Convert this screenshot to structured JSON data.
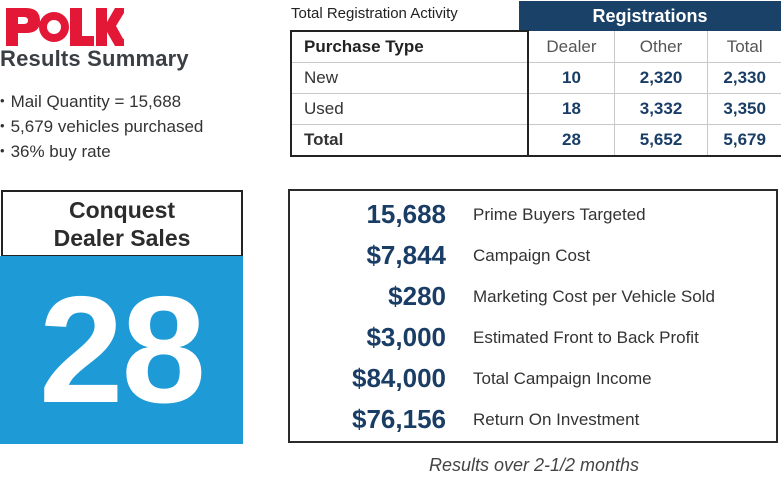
{
  "brand": {
    "logo_text": "POLK",
    "logo_color": "#e31837"
  },
  "summary": {
    "title": "Results Summary",
    "bullets": [
      "Mail Quantity = 15,688",
      "5,679 vehicles purchased",
      "36% buy rate"
    ]
  },
  "activity": {
    "caption": "Total Registration Activity",
    "group_header": "Registrations",
    "columns": [
      "Purchase Type",
      "Dealer",
      "Other",
      "Total"
    ],
    "rows": [
      {
        "type": "New",
        "dealer": "10",
        "other": "2,320",
        "total": "2,330"
      },
      {
        "type": "Used",
        "dealer": "18",
        "other": "3,332",
        "total": "3,350"
      },
      {
        "type": "Total",
        "dealer": "28",
        "other": "5,652",
        "total": "5,679"
      }
    ]
  },
  "conquest": {
    "line1": "Conquest",
    "line2": "Dealer Sales",
    "value": "28",
    "accent": "#1e9ad6"
  },
  "metrics": [
    {
      "value": "15,688",
      "label": "Prime Buyers Targeted"
    },
    {
      "value": "$7,844",
      "label": "Campaign Cost"
    },
    {
      "value": "$280",
      "label": "Marketing Cost per Vehicle Sold"
    },
    {
      "value": "$3,000",
      "label": "Estimated Front to Back Profit"
    },
    {
      "value": "$84,000",
      "label": "Total Campaign Income"
    },
    {
      "value": "$76,156",
      "label": "Return On Investment"
    }
  ],
  "footnote": "Results over 2-1/2 months",
  "colors": {
    "navy": "#1a4168",
    "value_text": "#1a3d66"
  }
}
